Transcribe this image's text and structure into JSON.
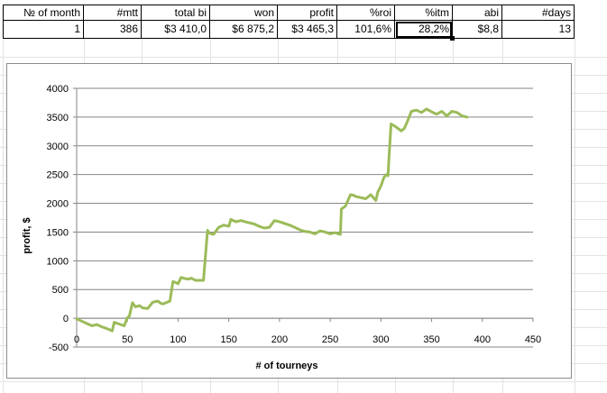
{
  "table": {
    "headers": [
      "№ of month",
      "#mtt",
      "total bi",
      "won",
      "profit",
      "%roi",
      "%itm",
      "abi",
      "#days"
    ],
    "row": [
      "1",
      "386",
      "$3 410,0",
      "$6 875,2",
      "$3 465,3",
      "101,6%",
      "28,2%",
      "$8,8",
      "13"
    ]
  },
  "colors": {
    "grid": "#d9d9d9",
    "series": "#9bbb59",
    "axis": "#868686"
  },
  "chart_data": {
    "type": "line",
    "xlabel": "# of tourneys",
    "ylabel": "profit, $",
    "xlim": [
      0,
      450
    ],
    "ylim": [
      -500,
      4000
    ],
    "x_ticks": [
      "0",
      "50",
      "100",
      "150",
      "200",
      "250",
      "300",
      "350",
      "400",
      "450"
    ],
    "y_ticks": [
      "-500",
      "0",
      "500",
      "1000",
      "1500",
      "2000",
      "2500",
      "3000",
      "3500",
      "4000"
    ],
    "grid": "horizontal",
    "legend": "none",
    "series": [
      {
        "color": "#9bbb59",
        "x": [
          0,
          5,
          10,
          15,
          20,
          25,
          30,
          35,
          37,
          42,
          47,
          50,
          52,
          55,
          58,
          62,
          65,
          70,
          75,
          80,
          83,
          85,
          88,
          92,
          95,
          98,
          100,
          103,
          107,
          110,
          113,
          117,
          120,
          125,
          129,
          130,
          131,
          135,
          140,
          145,
          150,
          152,
          157,
          162,
          168,
          175,
          180,
          185,
          190,
          195,
          200,
          205,
          210,
          215,
          220,
          225,
          230,
          235,
          240,
          245,
          250,
          255,
          258,
          260,
          261,
          265,
          270,
          273,
          275,
          280,
          285,
          290,
          295,
          297,
          300,
          303,
          305,
          307,
          308,
          310,
          313,
          317,
          320,
          323,
          326,
          330,
          335,
          340,
          345,
          350,
          355,
          360,
          365,
          370,
          375,
          380,
          385
        ],
        "y": [
          -10,
          -50,
          -90,
          -130,
          -110,
          -150,
          -180,
          -220,
          -70,
          -100,
          -130,
          10,
          40,
          270,
          200,
          220,
          180,
          170,
          280,
          300,
          260,
          250,
          270,
          300,
          640,
          620,
          600,
          710,
          690,
          680,
          700,
          660,
          660,
          660,
          1530,
          1500,
          1480,
          1460,
          1580,
          1620,
          1600,
          1720,
          1680,
          1700,
          1670,
          1640,
          1600,
          1570,
          1580,
          1700,
          1680,
          1650,
          1620,
          1580,
          1540,
          1510,
          1500,
          1470,
          1520,
          1500,
          1470,
          1490,
          1470,
          1460,
          1900,
          1950,
          2150,
          2140,
          2120,
          2100,
          2080,
          2150,
          2050,
          2200,
          2300,
          2450,
          2500,
          2480,
          2800,
          3380,
          3350,
          3300,
          3260,
          3300,
          3420,
          3600,
          3620,
          3580,
          3640,
          3590,
          3550,
          3600,
          3520,
          3600,
          3580,
          3520,
          3500
        ]
      }
    ]
  }
}
